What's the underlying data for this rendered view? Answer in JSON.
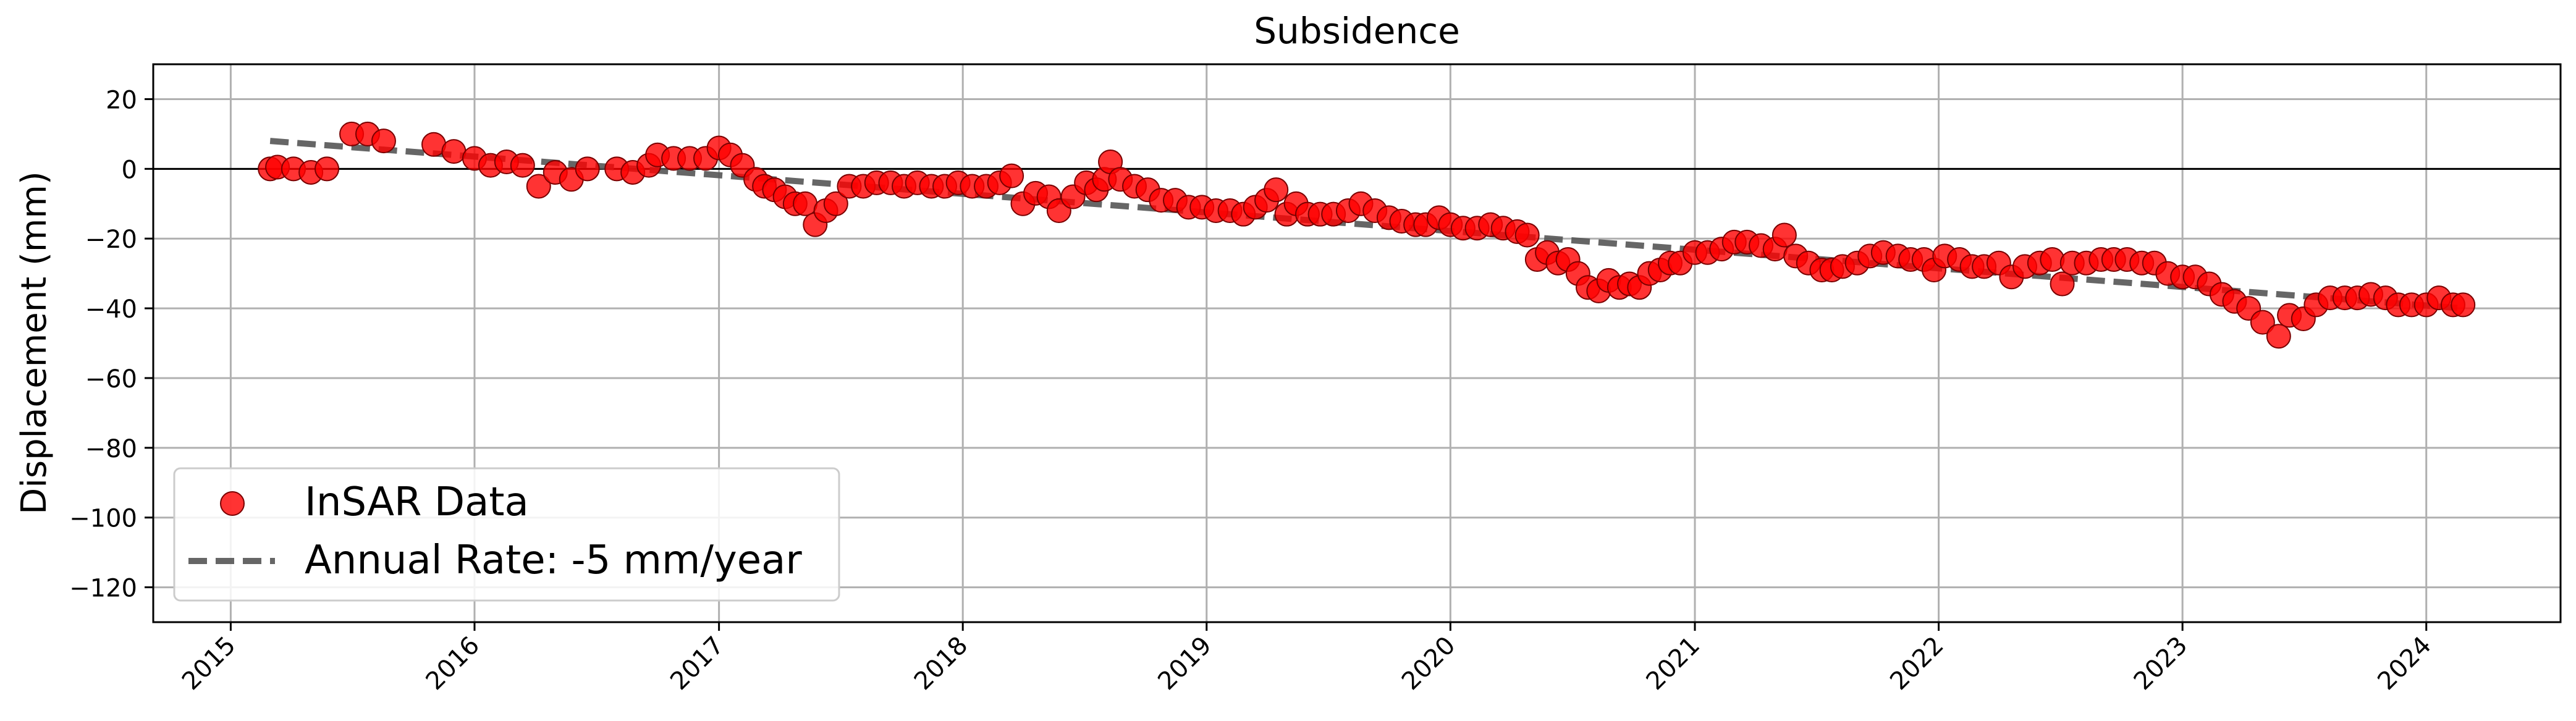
{
  "chart_data": {
    "type": "scatter",
    "title": "Subsidence",
    "xlabel": "",
    "ylabel": "Displacement (mm)",
    "xlim": [
      "2014-09-07",
      "2024-07-20"
    ],
    "ylim": [
      -130,
      30
    ],
    "x_ticks": [
      "2015",
      "2016",
      "2017",
      "2018",
      "2019",
      "2020",
      "2021",
      "2022",
      "2023",
      "2024"
    ],
    "y_ticks": [
      20,
      0,
      -20,
      -40,
      -60,
      -80,
      -100,
      -120
    ],
    "grid": true,
    "zero_line": 0,
    "legend_position": "lower-left",
    "series": [
      {
        "name": "InSAR Data",
        "kind": "scatter",
        "color": "#ff0000",
        "points": [
          [
            "2015-03-01",
            0.0
          ],
          [
            "2015-03-12",
            0.5
          ],
          [
            "2015-04-05",
            0.0
          ],
          [
            "2015-05-01",
            -1.0
          ],
          [
            "2015-05-25",
            0.0
          ],
          [
            "2015-07-01",
            10.0
          ],
          [
            "2015-07-25",
            10.0
          ],
          [
            "2015-08-18",
            8.0
          ],
          [
            "2015-11-01",
            7.0
          ],
          [
            "2015-12-01",
            5.0
          ],
          [
            "2016-01-01",
            3.0
          ],
          [
            "2016-01-25",
            1.0
          ],
          [
            "2016-02-18",
            2.0
          ],
          [
            "2016-03-13",
            1.0
          ],
          [
            "2016-04-06",
            -5.0
          ],
          [
            "2016-05-01",
            -1.0
          ],
          [
            "2016-05-25",
            -3.0
          ],
          [
            "2016-06-18",
            0.0
          ],
          [
            "2016-08-01",
            0.0
          ],
          [
            "2016-08-25",
            -1.0
          ],
          [
            "2016-09-18",
            1.0
          ],
          [
            "2016-10-01",
            4.0
          ],
          [
            "2016-10-25",
            3.0
          ],
          [
            "2016-11-18",
            3.0
          ],
          [
            "2016-12-12",
            3.0
          ],
          [
            "2017-01-01",
            6.0
          ],
          [
            "2017-01-18",
            4.0
          ],
          [
            "2017-02-05",
            1.0
          ],
          [
            "2017-02-25",
            -3.0
          ],
          [
            "2017-03-10",
            -5.0
          ],
          [
            "2017-03-25",
            -6.0
          ],
          [
            "2017-04-10",
            -8.0
          ],
          [
            "2017-04-25",
            -10.0
          ],
          [
            "2017-05-10",
            -10.0
          ],
          [
            "2017-05-25",
            -16.0
          ],
          [
            "2017-06-10",
            -12.0
          ],
          [
            "2017-06-25",
            -10.0
          ],
          [
            "2017-07-15",
            -5.0
          ],
          [
            "2017-08-05",
            -5.0
          ],
          [
            "2017-08-25",
            -4.0
          ],
          [
            "2017-09-15",
            -4.0
          ],
          [
            "2017-10-05",
            -5.0
          ],
          [
            "2017-10-25",
            -4.0
          ],
          [
            "2017-11-15",
            -5.0
          ],
          [
            "2017-12-05",
            -5.0
          ],
          [
            "2017-12-25",
            -4.0
          ],
          [
            "2018-01-15",
            -5.0
          ],
          [
            "2018-02-05",
            -5.0
          ],
          [
            "2018-02-25",
            -4.0
          ],
          [
            "2018-03-15",
            -2.0
          ],
          [
            "2018-04-01",
            -10.0
          ],
          [
            "2018-04-20",
            -7.0
          ],
          [
            "2018-05-10",
            -8.0
          ],
          [
            "2018-05-25",
            -12.0
          ],
          [
            "2018-06-15",
            -8.0
          ],
          [
            "2018-07-05",
            -4.0
          ],
          [
            "2018-07-20",
            -6.0
          ],
          [
            "2018-08-01",
            -3.0
          ],
          [
            "2018-08-10",
            2.0
          ],
          [
            "2018-08-25",
            -3.0
          ],
          [
            "2018-09-15",
            -5.0
          ],
          [
            "2018-10-05",
            -6.0
          ],
          [
            "2018-10-25",
            -9.0
          ],
          [
            "2018-11-15",
            -9.0
          ],
          [
            "2018-12-05",
            -11.0
          ],
          [
            "2018-12-25",
            -11.0
          ],
          [
            "2019-01-15",
            -12.0
          ],
          [
            "2019-02-05",
            -12.0
          ],
          [
            "2019-02-25",
            -13.0
          ],
          [
            "2019-03-15",
            -11.0
          ],
          [
            "2019-04-01",
            -9.0
          ],
          [
            "2019-04-15",
            -6.0
          ],
          [
            "2019-05-01",
            -13.0
          ],
          [
            "2019-05-15",
            -10.0
          ],
          [
            "2019-06-01",
            -13.0
          ],
          [
            "2019-06-20",
            -13.0
          ],
          [
            "2019-07-10",
            -13.0
          ],
          [
            "2019-08-01",
            -12.0
          ],
          [
            "2019-08-20",
            -10.0
          ],
          [
            "2019-09-10",
            -12.0
          ],
          [
            "2019-10-01",
            -14.0
          ],
          [
            "2019-10-20",
            -15.0
          ],
          [
            "2019-11-10",
            -16.0
          ],
          [
            "2019-11-25",
            -16.0
          ],
          [
            "2019-12-15",
            -14.0
          ],
          [
            "2020-01-01",
            -16.0
          ],
          [
            "2020-01-20",
            -17.0
          ],
          [
            "2020-02-10",
            -17.0
          ],
          [
            "2020-03-01",
            -16.0
          ],
          [
            "2020-03-20",
            -17.0
          ],
          [
            "2020-04-10",
            -18.0
          ],
          [
            "2020-04-25",
            -19.0
          ],
          [
            "2020-05-10",
            -26.0
          ],
          [
            "2020-05-25",
            -24.0
          ],
          [
            "2020-06-10",
            -27.0
          ],
          [
            "2020-06-25",
            -26.0
          ],
          [
            "2020-07-10",
            -30.0
          ],
          [
            "2020-07-25",
            -34.0
          ],
          [
            "2020-08-10",
            -35.0
          ],
          [
            "2020-08-25",
            -32.0
          ],
          [
            "2020-09-10",
            -34.0
          ],
          [
            "2020-09-25",
            -33.0
          ],
          [
            "2020-10-10",
            -34.0
          ],
          [
            "2020-10-25",
            -30.0
          ],
          [
            "2020-11-10",
            -29.0
          ],
          [
            "2020-11-25",
            -27.0
          ],
          [
            "2020-12-10",
            -27.0
          ],
          [
            "2021-01-01",
            -24.0
          ],
          [
            "2021-01-20",
            -24.0
          ],
          [
            "2021-02-10",
            -23.0
          ],
          [
            "2021-03-01",
            -21.0
          ],
          [
            "2021-03-20",
            -21.0
          ],
          [
            "2021-04-10",
            -22.0
          ],
          [
            "2021-05-01",
            -23.0
          ],
          [
            "2021-05-15",
            -19.0
          ],
          [
            "2021-06-01",
            -25.0
          ],
          [
            "2021-06-20",
            -27.0
          ],
          [
            "2021-07-10",
            -29.0
          ],
          [
            "2021-07-25",
            -29.0
          ],
          [
            "2021-08-10",
            -28.0
          ],
          [
            "2021-09-01",
            -27.0
          ],
          [
            "2021-09-20",
            -25.0
          ],
          [
            "2021-10-10",
            -24.0
          ],
          [
            "2021-11-01",
            -25.0
          ],
          [
            "2021-11-20",
            -26.0
          ],
          [
            "2021-12-10",
            -26.0
          ],
          [
            "2021-12-25",
            -29.0
          ],
          [
            "2022-01-10",
            -25.0
          ],
          [
            "2022-02-01",
            -26.0
          ],
          [
            "2022-02-20",
            -28.0
          ],
          [
            "2022-03-10",
            -28.0
          ],
          [
            "2022-04-01",
            -27.0
          ],
          [
            "2022-04-20",
            -31.0
          ],
          [
            "2022-05-10",
            -28.0
          ],
          [
            "2022-06-01",
            -27.0
          ],
          [
            "2022-06-20",
            -26.0
          ],
          [
            "2022-07-05",
            -33.0
          ],
          [
            "2022-07-20",
            -27.0
          ],
          [
            "2022-08-10",
            -27.0
          ],
          [
            "2022-09-01",
            -26.0
          ],
          [
            "2022-09-20",
            -26.0
          ],
          [
            "2022-10-10",
            -26.0
          ],
          [
            "2022-11-01",
            -27.0
          ],
          [
            "2022-11-20",
            -27.0
          ],
          [
            "2022-12-10",
            -30.0
          ],
          [
            "2023-01-01",
            -31.0
          ],
          [
            "2023-01-20",
            -31.0
          ],
          [
            "2023-02-10",
            -33.0
          ],
          [
            "2023-03-01",
            -36.0
          ],
          [
            "2023-03-20",
            -38.0
          ],
          [
            "2023-04-10",
            -40.0
          ],
          [
            "2023-05-01",
            -44.0
          ],
          [
            "2023-05-25",
            -48.0
          ],
          [
            "2023-06-10",
            -42.0
          ],
          [
            "2023-07-01",
            -43.0
          ],
          [
            "2023-07-20",
            -39.0
          ],
          [
            "2023-08-10",
            -37.0
          ],
          [
            "2023-09-01",
            -37.0
          ],
          [
            "2023-09-20",
            -37.0
          ],
          [
            "2023-10-10",
            -36.0
          ],
          [
            "2023-11-01",
            -37.0
          ],
          [
            "2023-11-20",
            -39.0
          ],
          [
            "2023-12-10",
            -39.0
          ],
          [
            "2024-01-01",
            -39.0
          ],
          [
            "2024-01-20",
            -37.0
          ],
          [
            "2024-02-10",
            -39.0
          ],
          [
            "2024-02-25",
            -39.0
          ]
        ]
      },
      {
        "name": "Annual Rate: -5 mm/year",
        "kind": "dashed-line",
        "color": "#555555",
        "points": [
          [
            "2015-03-01",
            8.0
          ],
          [
            "2024-02-25",
            -40.0
          ]
        ]
      }
    ]
  }
}
